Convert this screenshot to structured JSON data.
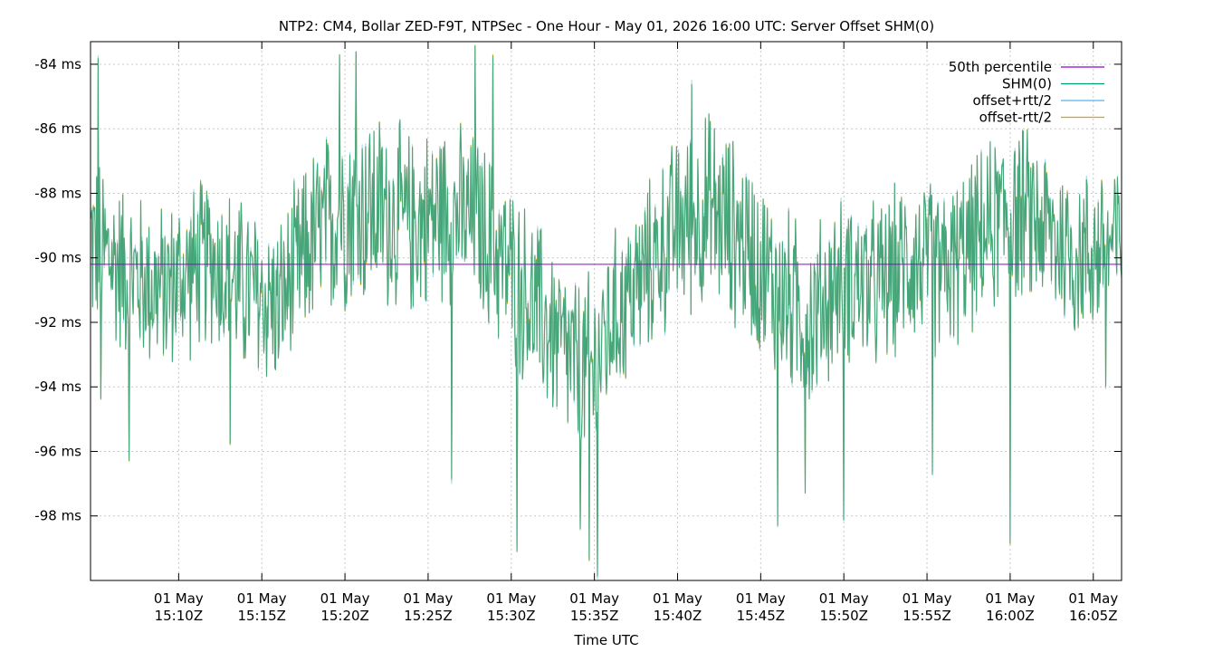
{
  "chart_data": {
    "type": "line",
    "title": "NTP2: CM4, Bollar ZED-F9T, NTPSec - One Hour - May 01, 2026 16:00 UTC: Server Offset SHM(0)",
    "xlabel": "Time UTC",
    "ylabel": "",
    "x_range": [
      "2026-05-01T15:04:42Z",
      "2026-05-01T16:06:42Z"
    ],
    "ylim": [
      -100,
      -83.3
    ],
    "y_ticks": [
      {
        "value": -84,
        "label": "-84 ms"
      },
      {
        "value": -86,
        "label": "-86 ms"
      },
      {
        "value": -88,
        "label": "-88 ms"
      },
      {
        "value": -90,
        "label": "-90 ms"
      },
      {
        "value": -92,
        "label": "-92 ms"
      },
      {
        "value": -94,
        "label": "-94 ms"
      },
      {
        "value": -96,
        "label": "-96 ms"
      },
      {
        "value": -98,
        "label": "-98 ms"
      }
    ],
    "x_ticks": [
      {
        "time": "2026-05-01T15:10:00Z",
        "line1": "01 May",
        "line2": "15:10Z"
      },
      {
        "time": "2026-05-01T15:15:00Z",
        "line1": "01 May",
        "line2": "15:15Z"
      },
      {
        "time": "2026-05-01T15:20:00Z",
        "line1": "01 May",
        "line2": "15:20Z"
      },
      {
        "time": "2026-05-01T15:25:00Z",
        "line1": "01 May",
        "line2": "15:25Z"
      },
      {
        "time": "2026-05-01T15:30:00Z",
        "line1": "01 May",
        "line2": "15:30Z"
      },
      {
        "time": "2026-05-01T15:35:00Z",
        "line1": "01 May",
        "line2": "15:35Z"
      },
      {
        "time": "2026-05-01T15:40:00Z",
        "line1": "01 May",
        "line2": "15:40Z"
      },
      {
        "time": "2026-05-01T15:45:00Z",
        "line1": "01 May",
        "line2": "15:45Z"
      },
      {
        "time": "2026-05-01T15:50:00Z",
        "line1": "01 May",
        "line2": "15:50Z"
      },
      {
        "time": "2026-05-01T15:55:00Z",
        "line1": "01 May",
        "line2": "15:55Z"
      },
      {
        "time": "2026-05-01T16:00:00Z",
        "line1": "01 May",
        "line2": "16:00Z"
      },
      {
        "time": "2026-05-01T16:05:00Z",
        "line1": "01 May",
        "line2": "16:05Z"
      }
    ],
    "grid": true,
    "legend_position": "top-right",
    "series": [
      {
        "name": "50th percentile",
        "color": "#9400d3",
        "kind": "constant",
        "value": -90.2
      },
      {
        "name": "SHM(0)",
        "color": "#009e73",
        "kind": "noise",
        "width": 1.2
      },
      {
        "name": "offset+rtt/2",
        "color": "#56b4e9",
        "kind": "noise",
        "width": 1
      },
      {
        "name": "offset-rtt/2",
        "color": "#e69f00",
        "kind": "noise",
        "width": 1
      }
    ],
    "envelope": {
      "times": [
        "15:04:42",
        "15:07:00",
        "15:09:00",
        "15:12:00",
        "15:14:00",
        "15:16:00",
        "15:18:00",
        "15:20:00",
        "15:22:00",
        "15:24:00",
        "15:26:00",
        "15:28:00",
        "15:30:00",
        "15:32:00",
        "15:34:00",
        "15:35:00",
        "15:36:00",
        "15:38:00",
        "15:40:00",
        "15:42:00",
        "15:44:00",
        "15:46:00",
        "15:48:00",
        "15:50:00",
        "15:52:00",
        "15:54:00",
        "15:56:00",
        "15:58:00",
        "16:00:00",
        "16:02:00",
        "16:04:00",
        "16:06:42"
      ],
      "center": [
        -89.5,
        -90.5,
        -91.0,
        -90.0,
        -91.0,
        -91.5,
        -89.5,
        -88.5,
        -88.5,
        -89.0,
        -88.5,
        -89.0,
        -90.5,
        -92.0,
        -93.5,
        -93.5,
        -92.0,
        -90.5,
        -89.0,
        -88.5,
        -89.5,
        -91.0,
        -92.0,
        -90.5,
        -91.0,
        -90.0,
        -90.5,
        -89.5,
        -88.5,
        -89.0,
        -90.0,
        -89.5
      ],
      "amplitude": [
        3.2,
        3.0,
        3.0,
        3.0,
        3.2,
        3.0,
        3.2,
        3.5,
        3.5,
        3.2,
        3.2,
        3.2,
        3.2,
        3.2,
        3.2,
        3.5,
        3.0,
        3.0,
        3.2,
        3.5,
        3.2,
        3.2,
        3.2,
        3.0,
        3.0,
        3.0,
        3.0,
        3.0,
        3.2,
        3.0,
        3.0,
        3.0
      ]
    },
    "spikes": [
      {
        "time": "15:05:10",
        "value": -83.8
      },
      {
        "time": "15:05:20",
        "value": -94.4
      },
      {
        "time": "15:07:00",
        "value": -96.3
      },
      {
        "time": "15:13:05",
        "value": -95.8
      },
      {
        "time": "15:19:40",
        "value": -83.7
      },
      {
        "time": "15:20:40",
        "value": -83.6
      },
      {
        "time": "15:26:25",
        "value": -96.9
      },
      {
        "time": "15:27:50",
        "value": -83.4
      },
      {
        "time": "15:28:55",
        "value": -83.7
      },
      {
        "time": "15:30:20",
        "value": -99.1
      },
      {
        "time": "15:34:10",
        "value": -98.4
      },
      {
        "time": "15:34:40",
        "value": -99.4
      },
      {
        "time": "15:35:10",
        "value": -99.9
      },
      {
        "time": "15:40:50",
        "value": -84.6
      },
      {
        "time": "15:46:00",
        "value": -98.3
      },
      {
        "time": "15:47:40",
        "value": -97.3
      },
      {
        "time": "15:50:00",
        "value": -98.1
      },
      {
        "time": "15:55:20",
        "value": -96.7
      },
      {
        "time": "16:00:00",
        "value": -98.9
      },
      {
        "time": "16:05:45",
        "value": -94.0
      }
    ]
  }
}
